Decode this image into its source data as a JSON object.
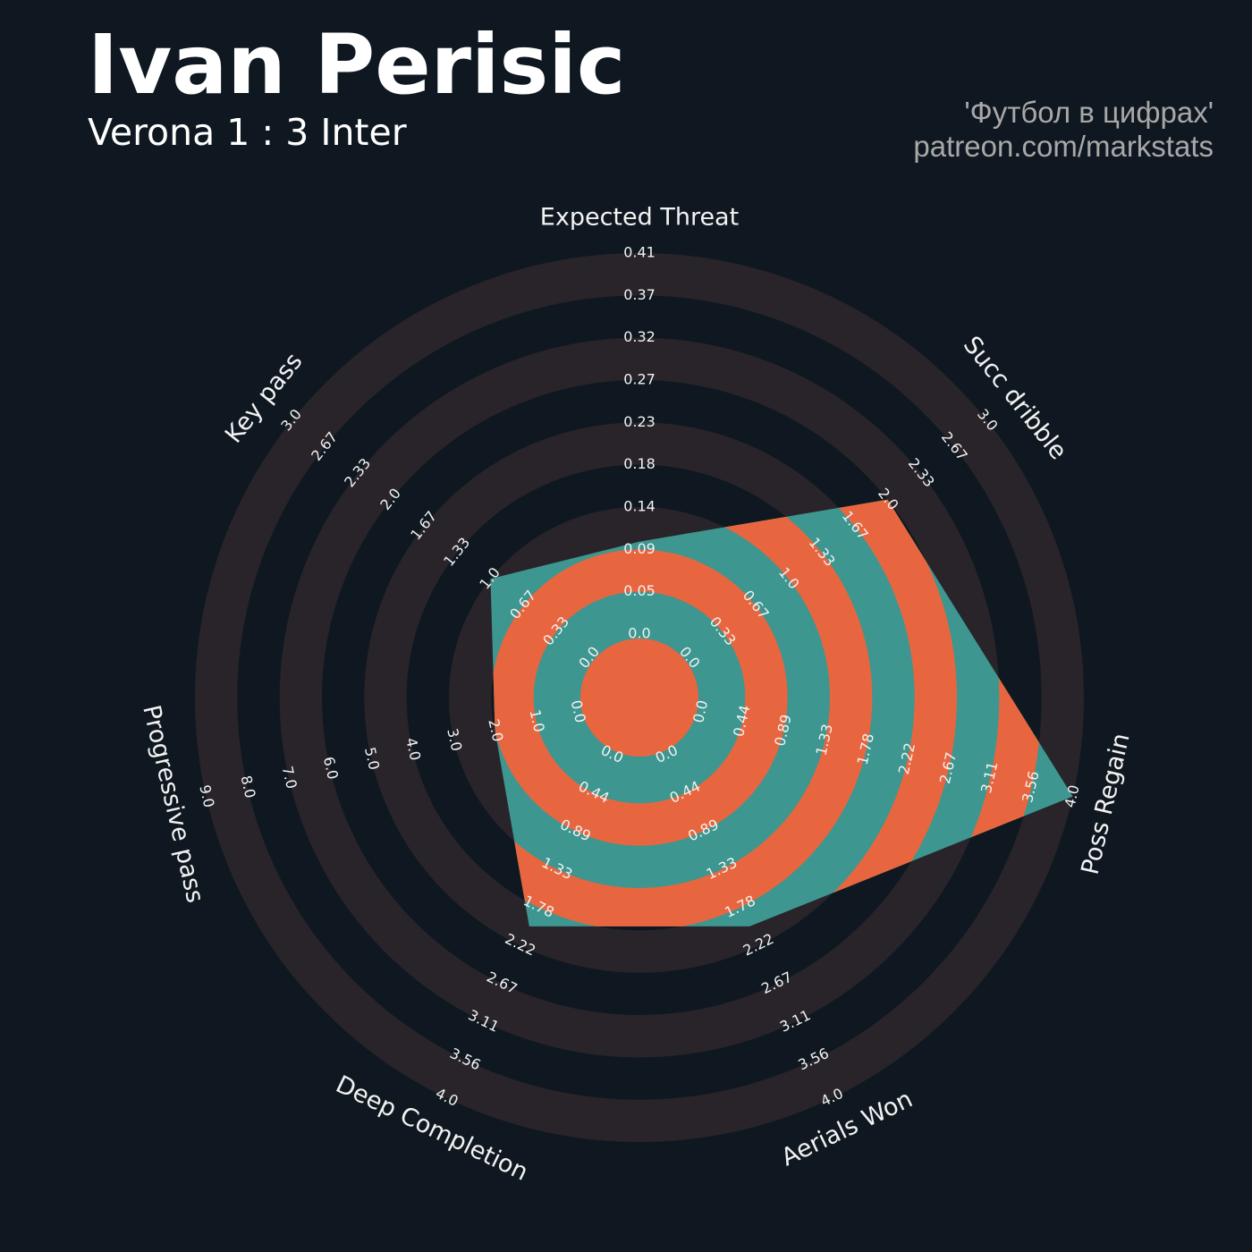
{
  "chart_data": {
    "type": "radar",
    "title": "Ivan Perisic",
    "subtitle": "Verona 1 : 3 Inter",
    "credits": [
      "'Футбол в цифрах'",
      "patreon.com/markstats"
    ],
    "colors": {
      "background": "#0f1820",
      "ring": "#28242a",
      "fill": "#3d9690",
      "fill_alt": "#e8663f"
    },
    "categories": [
      "Expected Threat",
      "Succ dribble",
      "Poss Regain",
      "Aerials Won",
      "Deep Completion",
      "Progressive pass",
      "Key pass"
    ],
    "values": [
      0.1,
      2,
      4,
      2,
      2,
      2,
      1
    ],
    "axes": [
      {
        "lim": [
          0,
          0.412
        ],
        "ticks": [
          {
            "value": 0,
            "label": "0.0"
          },
          {
            "value": 0.04578,
            "label": "0.05"
          },
          {
            "value": 0.09156,
            "label": "0.09"
          },
          {
            "value": 0.13733,
            "label": "0.14"
          },
          {
            "value": 0.18311,
            "label": "0.18"
          },
          {
            "value": 0.22889,
            "label": "0.23"
          },
          {
            "value": 0.27467,
            "label": "0.27"
          },
          {
            "value": 0.32044,
            "label": "0.32"
          },
          {
            "value": 0.36622,
            "label": "0.37"
          },
          {
            "value": 0.412,
            "label": "0.41"
          }
        ]
      },
      {
        "lim": [
          0,
          3
        ],
        "ticks": [
          {
            "value": 0,
            "label": "0.0"
          },
          {
            "value": 0.3333,
            "label": "0.33"
          },
          {
            "value": 0.6667,
            "label": "0.67"
          },
          {
            "value": 1,
            "label": "1.0"
          },
          {
            "value": 1.3333,
            "label": "1.33"
          },
          {
            "value": 1.6667,
            "label": "1.67"
          },
          {
            "value": 2,
            "label": "2.0"
          },
          {
            "value": 2.3333,
            "label": "2.33"
          },
          {
            "value": 2.6667,
            "label": "2.67"
          },
          {
            "value": 3,
            "label": "3.0"
          }
        ]
      },
      {
        "lim": [
          0,
          4
        ],
        "ticks": [
          {
            "value": 0,
            "label": "0.0"
          },
          {
            "value": 0.4444,
            "label": "0.44"
          },
          {
            "value": 0.8889,
            "label": "0.89"
          },
          {
            "value": 1.3333,
            "label": "1.33"
          },
          {
            "value": 1.7778,
            "label": "1.78"
          },
          {
            "value": 2.2222,
            "label": "2.22"
          },
          {
            "value": 2.6667,
            "label": "2.67"
          },
          {
            "value": 3.1111,
            "label": "3.11"
          },
          {
            "value": 3.5556,
            "label": "3.56"
          },
          {
            "value": 4,
            "label": "4.0"
          }
        ]
      },
      {
        "lim": [
          0,
          4
        ],
        "ticks": [
          {
            "value": 0,
            "label": "0.0"
          },
          {
            "value": 0.4444,
            "label": "0.44"
          },
          {
            "value": 0.8889,
            "label": "0.89"
          },
          {
            "value": 1.3333,
            "label": "1.33"
          },
          {
            "value": 1.7778,
            "label": "1.78"
          },
          {
            "value": 2.2222,
            "label": "2.22"
          },
          {
            "value": 2.6667,
            "label": "2.67"
          },
          {
            "value": 3.1111,
            "label": "3.11"
          },
          {
            "value": 3.5556,
            "label": "3.56"
          },
          {
            "value": 4,
            "label": "4.0"
          }
        ]
      },
      {
        "lim": [
          0,
          4
        ],
        "ticks": [
          {
            "value": 0,
            "label": "0.0"
          },
          {
            "value": 0.4444,
            "label": "0.44"
          },
          {
            "value": 0.8889,
            "label": "0.89"
          },
          {
            "value": 1.3333,
            "label": "1.33"
          },
          {
            "value": 1.7778,
            "label": "1.78"
          },
          {
            "value": 2.2222,
            "label": "2.22"
          },
          {
            "value": 2.6667,
            "label": "2.67"
          },
          {
            "value": 3.1111,
            "label": "3.11"
          },
          {
            "value": 3.5556,
            "label": "3.56"
          },
          {
            "value": 4,
            "label": "4.0"
          }
        ]
      },
      {
        "lim": [
          0,
          9
        ],
        "ticks": [
          {
            "value": 0,
            "label": "0.0"
          },
          {
            "value": 1,
            "label": "1.0"
          },
          {
            "value": 2,
            "label": "2.0"
          },
          {
            "value": 3,
            "label": "3.0"
          },
          {
            "value": 4,
            "label": "4.0"
          },
          {
            "value": 5,
            "label": "5.0"
          },
          {
            "value": 6,
            "label": "6.0"
          },
          {
            "value": 7,
            "label": "7.0"
          },
          {
            "value": 8,
            "label": "8.0"
          },
          {
            "value": 9,
            "label": "9.0"
          }
        ]
      },
      {
        "lim": [
          0,
          3
        ],
        "ticks": [
          {
            "value": 0,
            "label": "0.0"
          },
          {
            "value": 0.3333,
            "label": "0.33"
          },
          {
            "value": 0.6667,
            "label": "0.67"
          },
          {
            "value": 1,
            "label": "1.0"
          },
          {
            "value": 1.3333,
            "label": "1.33"
          },
          {
            "value": 1.6667,
            "label": "1.67"
          },
          {
            "value": 2,
            "label": "2.0"
          },
          {
            "value": 2.3333,
            "label": "2.33"
          },
          {
            "value": 2.6667,
            "label": "2.67"
          },
          {
            "value": 3,
            "label": "3.0"
          }
        ]
      }
    ]
  }
}
